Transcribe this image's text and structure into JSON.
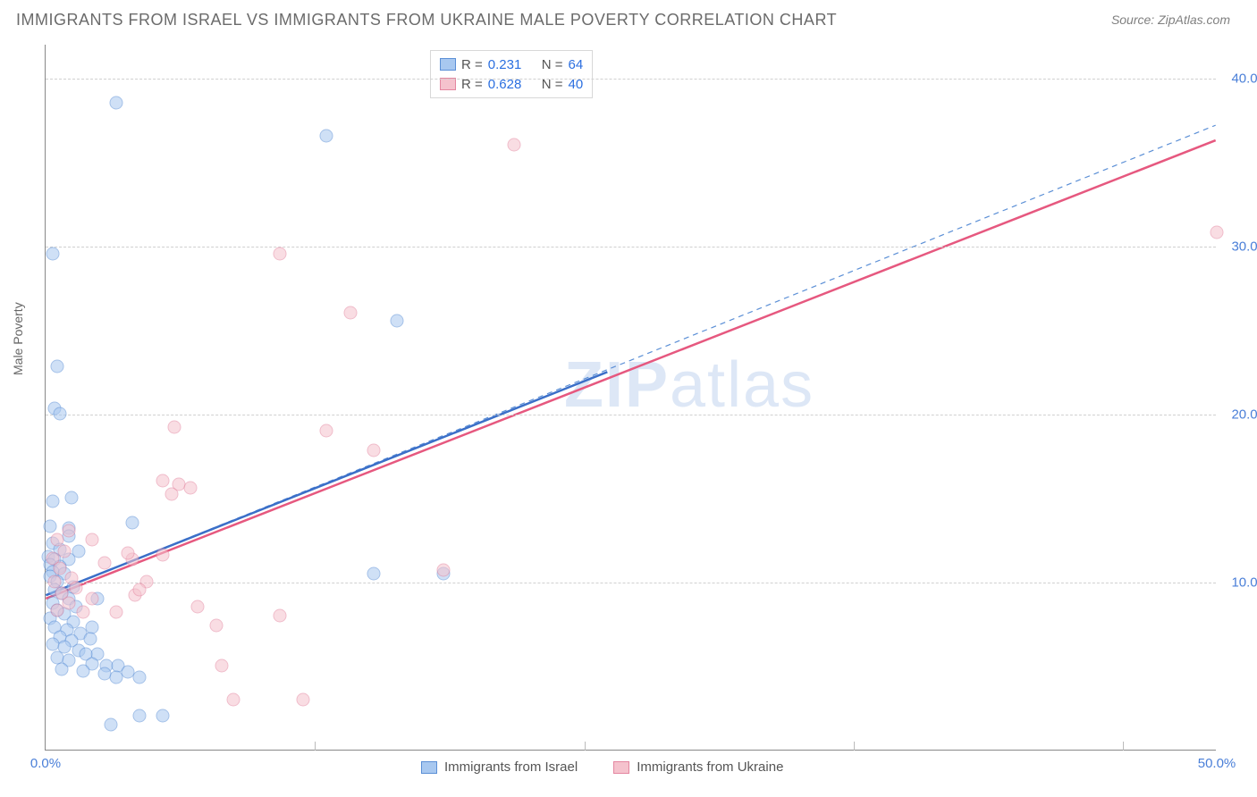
{
  "title": "IMMIGRANTS FROM ISRAEL VS IMMIGRANTS FROM UKRAINE MALE POVERTY CORRELATION CHART",
  "source": "Source: ZipAtlas.com",
  "ylabel": "Male Poverty",
  "watermark_bold": "ZIP",
  "watermark_rest": "atlas",
  "chart": {
    "type": "scatter+regression",
    "xlim": [
      0,
      50
    ],
    "ylim": [
      0,
      42
    ],
    "xtick_labels": [
      "0.0%",
      "50.0%"
    ],
    "xtick_positions": [
      0,
      50
    ],
    "ytick_labels": [
      "10.0%",
      "20.0%",
      "30.0%",
      "40.0%"
    ],
    "ytick_positions": [
      10,
      20,
      30,
      40
    ],
    "grid_y_positions": [
      10,
      20,
      30,
      40
    ],
    "grid_x_positions": [
      11.5,
      23,
      34.5,
      46
    ],
    "grid_color": "#d0d0d0",
    "background_color": "#ffffff",
    "marker_radius": 7.5,
    "marker_opacity": 0.55,
    "series": [
      {
        "name": "Immigrants from Israel",
        "color_fill": "#a8c8f0",
        "color_stroke": "#5b8fd6",
        "r": 0.231,
        "n": 64,
        "regression_dashed": {
          "x1": 0,
          "y1": 9.2,
          "x2": 50,
          "y2": 37.2,
          "stroke": "#5b8fd6",
          "width": 1.2
        },
        "regression_solid": {
          "x1": 0,
          "y1": 9.2,
          "x2": 24,
          "y2": 22.5,
          "stroke": "#3b6fc8",
          "width": 2.5
        },
        "points": [
          [
            0.3,
            29.5
          ],
          [
            3.0,
            38.5
          ],
          [
            0.5,
            22.8
          ],
          [
            0.4,
            20.3
          ],
          [
            0.6,
            20.0
          ],
          [
            0.3,
            14.8
          ],
          [
            0.2,
            13.3
          ],
          [
            1.0,
            13.2
          ],
          [
            1.0,
            12.7
          ],
          [
            0.3,
            12.3
          ],
          [
            0.6,
            11.9
          ],
          [
            1.4,
            11.8
          ],
          [
            0.1,
            11.5
          ],
          [
            0.4,
            11.3
          ],
          [
            1.0,
            11.3
          ],
          [
            0.2,
            11.0
          ],
          [
            0.6,
            10.9
          ],
          [
            0.3,
            10.6
          ],
          [
            0.8,
            10.5
          ],
          [
            0.2,
            10.3
          ],
          [
            1.1,
            15.0
          ],
          [
            0.5,
            10.0
          ],
          [
            1.2,
            9.7
          ],
          [
            0.4,
            9.5
          ],
          [
            0.7,
            9.3
          ],
          [
            1.0,
            9.0
          ],
          [
            0.3,
            8.7
          ],
          [
            1.3,
            8.5
          ],
          [
            0.5,
            8.3
          ],
          [
            0.8,
            8.1
          ],
          [
            0.2,
            7.8
          ],
          [
            1.2,
            7.6
          ],
          [
            0.4,
            7.3
          ],
          [
            2.0,
            7.3
          ],
          [
            0.9,
            7.1
          ],
          [
            1.5,
            6.9
          ],
          [
            0.6,
            6.7
          ],
          [
            1.1,
            6.5
          ],
          [
            1.9,
            6.6
          ],
          [
            0.3,
            6.3
          ],
          [
            0.8,
            6.1
          ],
          [
            1.4,
            5.9
          ],
          [
            2.2,
            5.7
          ],
          [
            1.7,
            5.7
          ],
          [
            0.5,
            5.5
          ],
          [
            1.0,
            5.3
          ],
          [
            2.0,
            5.1
          ],
          [
            2.6,
            5.0
          ],
          [
            3.1,
            5.0
          ],
          [
            0.7,
            4.8
          ],
          [
            1.6,
            4.7
          ],
          [
            2.5,
            4.5
          ],
          [
            3.5,
            4.6
          ],
          [
            3.0,
            4.3
          ],
          [
            4.0,
            4.3
          ],
          [
            2.2,
            9.0
          ],
          [
            4.0,
            2.0
          ],
          [
            2.8,
            1.5
          ],
          [
            3.7,
            13.5
          ],
          [
            5.0,
            2.0
          ],
          [
            12.0,
            36.5
          ],
          [
            14.0,
            10.5
          ],
          [
            15.0,
            25.5
          ],
          [
            17.0,
            10.5
          ]
        ]
      },
      {
        "name": "Immigrants from Ukraine",
        "color_fill": "#f5c2cd",
        "color_stroke": "#e486a0",
        "r": 0.628,
        "n": 40,
        "regression_solid": {
          "x1": 0,
          "y1": 9.0,
          "x2": 50,
          "y2": 36.3,
          "stroke": "#e6587f",
          "width": 2.5
        },
        "points": [
          [
            50.0,
            30.8
          ],
          [
            20.0,
            36.0
          ],
          [
            10.0,
            29.5
          ],
          [
            13.0,
            26.0
          ],
          [
            12.0,
            19.0
          ],
          [
            14.0,
            17.8
          ],
          [
            17.0,
            10.7
          ],
          [
            5.7,
            15.8
          ],
          [
            5.0,
            16.0
          ],
          [
            6.2,
            15.6
          ],
          [
            5.4,
            15.2
          ],
          [
            5.0,
            11.6
          ],
          [
            3.7,
            11.3
          ],
          [
            3.5,
            11.7
          ],
          [
            4.3,
            10.0
          ],
          [
            6.5,
            8.5
          ],
          [
            3.8,
            9.2
          ],
          [
            7.3,
            7.4
          ],
          [
            7.5,
            5.0
          ],
          [
            8.0,
            3.0
          ],
          [
            10.0,
            8.0
          ],
          [
            5.5,
            19.2
          ],
          [
            2.5,
            11.1
          ],
          [
            1.0,
            13.0
          ],
          [
            0.5,
            12.5
          ],
          [
            0.8,
            11.8
          ],
          [
            0.3,
            11.4
          ],
          [
            0.6,
            10.8
          ],
          [
            1.1,
            10.2
          ],
          [
            0.4,
            10.0
          ],
          [
            1.3,
            9.6
          ],
          [
            0.7,
            9.3
          ],
          [
            2.0,
            9.0
          ],
          [
            1.0,
            8.7
          ],
          [
            0.5,
            8.3
          ],
          [
            1.6,
            8.2
          ],
          [
            3.0,
            8.2
          ],
          [
            2.0,
            12.5
          ],
          [
            4.0,
            9.5
          ],
          [
            11.0,
            3.0
          ]
        ]
      }
    ]
  },
  "legend_top": {
    "r_label": "R =",
    "n_label": "N =",
    "values": [
      {
        "r": "0.231",
        "n": "64"
      },
      {
        "r": "0.628",
        "n": "40"
      }
    ]
  },
  "legend_bottom": {
    "items": [
      "Immigrants from Israel",
      "Immigrants from Ukraine"
    ]
  },
  "colors": {
    "tick_text": "#4a7fd8",
    "stat_value": "#2b6fe0"
  }
}
